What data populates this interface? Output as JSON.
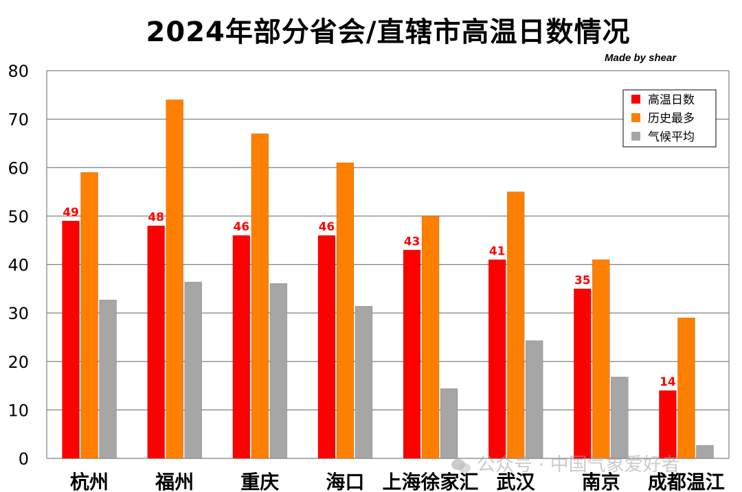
{
  "page": {
    "title": "2024年部分省会/直辖市高温日数情况",
    "credit": "Made by shear",
    "watermark": "公众号 · 中国气象爱好者"
  },
  "colors": {
    "red": "#ff0000",
    "orange": "#ff7f00",
    "gray": "#a6a6a6",
    "grid": "#7f7f7f"
  },
  "chart_data": {
    "type": "bar",
    "title": "2024年部分省会/直辖市高温日数情况",
    "xlabel": "",
    "ylabel": "",
    "ylim": [
      0,
      80
    ],
    "yticks": [
      0,
      10,
      20,
      30,
      40,
      50,
      60,
      70,
      80
    ],
    "grid": true,
    "legend_position": "top-right",
    "categories": [
      "杭州",
      "福州",
      "重庆",
      "海口",
      "上海徐家汇",
      "武汉",
      "南京",
      "成都温江"
    ],
    "series": [
      {
        "name": "高温日数",
        "color": "#ff0000",
        "values": [
          49,
          48,
          46,
          46,
          43,
          41,
          35,
          14
        ],
        "labels": [
          "49",
          "48",
          "46",
          "46",
          "43",
          "41",
          "35",
          "14"
        ]
      },
      {
        "name": "历史最多",
        "color": "#ff7f00",
        "values": [
          59,
          74,
          67,
          61,
          50,
          55,
          41,
          29
        ]
      },
      {
        "name": "气候平均",
        "color": "#a6a6a6",
        "values": [
          32.7,
          36.4,
          36.1,
          31.4,
          14.4,
          24.3,
          16.8,
          2.7
        ]
      }
    ]
  }
}
